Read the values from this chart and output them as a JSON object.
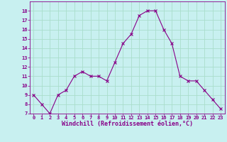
{
  "x": [
    0,
    1,
    2,
    3,
    4,
    5,
    6,
    7,
    8,
    9,
    10,
    11,
    12,
    13,
    14,
    15,
    16,
    17,
    18,
    19,
    20,
    21,
    22,
    23
  ],
  "y": [
    9.0,
    8.0,
    7.0,
    9.0,
    9.5,
    11.0,
    11.5,
    11.0,
    11.0,
    10.5,
    12.5,
    14.5,
    15.5,
    17.5,
    18.0,
    18.0,
    16.0,
    14.5,
    11.0,
    10.5,
    10.5,
    9.5,
    8.5,
    7.5
  ],
  "line_color": "#880088",
  "marker": "x",
  "marker_size": 3,
  "bg_color": "#c8f0f0",
  "grid_color": "#aaddcc",
  "xlabel": "Windchill (Refroidissement éolien,°C)",
  "tick_color": "#880088",
  "ylim": [
    7,
    19
  ],
  "xlim": [
    -0.5,
    23.5
  ],
  "yticks": [
    7,
    8,
    9,
    10,
    11,
    12,
    13,
    14,
    15,
    16,
    17,
    18
  ],
  "xticks": [
    0,
    1,
    2,
    3,
    4,
    5,
    6,
    7,
    8,
    9,
    10,
    11,
    12,
    13,
    14,
    15,
    16,
    17,
    18,
    19,
    20,
    21,
    22,
    23
  ],
  "tick_fontsize": 5.0,
  "xlabel_fontsize": 6.0
}
